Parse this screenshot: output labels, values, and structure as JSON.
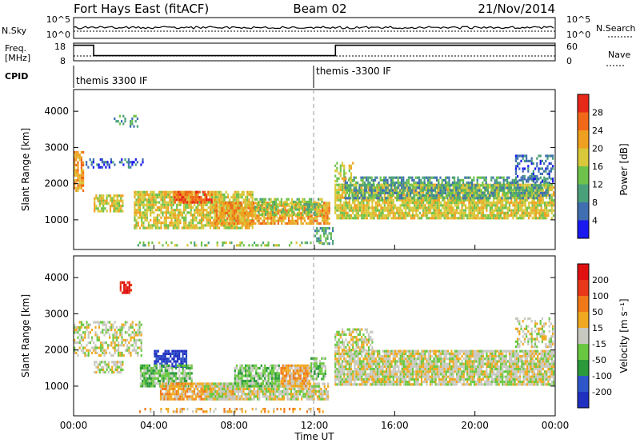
{
  "header": {
    "station": "Fort Hays East (fitACF)",
    "beam": "Beam 02",
    "date": "21/Nov/2014"
  },
  "noise_panel": {
    "left_label": "N.Sky",
    "left_ticks": [
      "10^5",
      "10^0"
    ],
    "right_ticks": [
      "10^5",
      "10^0"
    ],
    "right_label": "N.Search"
  },
  "freq_panel": {
    "left_label_1": "Freq.",
    "left_label_2": "[MHz]",
    "left_ticks": [
      "18",
      "8"
    ],
    "right_ticks": [
      "60",
      "0"
    ],
    "right_label": "Nave",
    "freq_steps": [
      {
        "t": 0.0,
        "v": 17.6
      },
      {
        "t": 1.0,
        "v": 17.6
      },
      {
        "t": 1.0,
        "v": 10.5
      },
      {
        "t": 13.05,
        "v": 10.5
      },
      {
        "t": 13.05,
        "v": 17.6
      },
      {
        "t": 24.0,
        "v": 17.6
      }
    ]
  },
  "cpid": {
    "label": "CPID",
    "segments": [
      {
        "start_h": 0.0,
        "label": "themis 3300 IF"
      },
      {
        "start_h": 12.0,
        "label": "themis -3300 IF"
      }
    ]
  },
  "x_axis": {
    "label": "Time UT",
    "ticks": [
      "00:00",
      "04:00",
      "08:00",
      "12:00",
      "16:00",
      "20:00",
      "00:00"
    ],
    "tick_hours": [
      0,
      4,
      8,
      12,
      16,
      20,
      24
    ],
    "range_h": [
      0,
      24
    ]
  },
  "power_panel": {
    "ylabel": "Slant Range [km]",
    "yticks": [
      "1000",
      "2000",
      "3000",
      "4000"
    ],
    "cbar_label": "Power [dB]",
    "cbar_ticks": [
      "4",
      "8",
      "12",
      "16",
      "20",
      "24",
      "28"
    ],
    "colors": [
      "#1919f0",
      "#3f6fb0",
      "#4aa07a",
      "#6ec24a",
      "#d8c83a",
      "#f0a020",
      "#f06818",
      "#e82818"
    ]
  },
  "velocity_panel": {
    "ylabel": "Slant Range [km]",
    "yticks": [
      "1000",
      "2000",
      "3000",
      "4000"
    ],
    "cbar_label": "Velocity [m s⁻¹]",
    "cbar_ticks": [
      "200",
      "100",
      "50",
      "15",
      "-15",
      "-50",
      "-100",
      "-200"
    ],
    "colors": [
      "#2030c0",
      "#2d56c8",
      "#2a9a3a",
      "#6ac840",
      "#c8c8c0",
      "#f0a820",
      "#f07818",
      "#e83818",
      "#e01010"
    ]
  },
  "chart_data": {
    "type": "heatmap",
    "title": "Fort Hays East (fitACF) Beam 02 21/Nov/2014",
    "xlabel": "Time UT",
    "ylabel": "Slant Range [km]",
    "xlim": [
      0,
      24
    ],
    "ylim": [
      180,
      4600
    ],
    "power_colorbar": {
      "label": "Power [dB]",
      "ticks": [
        4,
        8,
        12,
        16,
        20,
        24,
        28
      ]
    },
    "velocity_colorbar": {
      "label": "Velocity [m s⁻¹]",
      "ticks": [
        200,
        100,
        50,
        15,
        -15,
        -50,
        -100,
        -200
      ]
    },
    "power_regions": [
      {
        "t0": 0.0,
        "t1": 0.6,
        "r0": 1700,
        "r1": 2900,
        "level": 5,
        "density": 0.85
      },
      {
        "t0": 0.6,
        "t1": 3.5,
        "r0": 2400,
        "r1": 2700,
        "level": 1,
        "density": 0.45
      },
      {
        "t0": 1.0,
        "t1": 2.5,
        "r0": 1200,
        "r1": 1700,
        "level": 4,
        "density": 0.8
      },
      {
        "t0": 2.0,
        "t1": 3.3,
        "r0": 3500,
        "r1": 3900,
        "level": 2,
        "density": 0.4
      },
      {
        "t0": 3.0,
        "t1": 9.0,
        "r0": 700,
        "r1": 1800,
        "level": 4,
        "density": 0.8
      },
      {
        "t0": 5.0,
        "t1": 7.0,
        "r0": 1400,
        "r1": 1800,
        "level": 6,
        "density": 0.75
      },
      {
        "t0": 7.0,
        "t1": 12.8,
        "r0": 800,
        "r1": 1500,
        "level": 5,
        "density": 0.8
      },
      {
        "t0": 9.0,
        "t1": 12.5,
        "r0": 1100,
        "r1": 1600,
        "level": 3,
        "density": 0.6
      },
      {
        "t0": 12.0,
        "t1": 13.0,
        "r0": 300,
        "r1": 800,
        "level": 2,
        "density": 0.6
      },
      {
        "t0": 13.0,
        "t1": 24.0,
        "r0": 1000,
        "r1": 2000,
        "level": 4,
        "density": 0.85
      },
      {
        "t0": 13.5,
        "t1": 23.8,
        "r0": 1500,
        "r1": 2200,
        "level": 2,
        "density": 0.6
      },
      {
        "t0": 13.0,
        "t1": 14.0,
        "r0": 2000,
        "r1": 2600,
        "level": 4,
        "density": 0.5
      },
      {
        "t0": 22.0,
        "t1": 24.0,
        "r0": 2000,
        "r1": 2800,
        "level": 1,
        "density": 0.45
      },
      {
        "t0": 3.0,
        "t1": 12.5,
        "r0": 200,
        "r1": 400,
        "level": 3,
        "density": 0.3
      }
    ],
    "velocity_regions": [
      {
        "t0": 0.0,
        "t1": 3.5,
        "r0": 1800,
        "r1": 2800,
        "level": 4,
        "density": 0.5
      },
      {
        "t0": 1.0,
        "t1": 2.5,
        "r0": 1300,
        "r1": 1700,
        "level": 4,
        "density": 0.6
      },
      {
        "t0": 2.3,
        "t1": 3.0,
        "r0": 3500,
        "r1": 3900,
        "level": 8,
        "density": 0.7
      },
      {
        "t0": 4.0,
        "t1": 5.7,
        "r0": 1500,
        "r1": 2000,
        "level": 0,
        "density": 0.8
      },
      {
        "t0": 3.3,
        "t1": 6.0,
        "r0": 900,
        "r1": 1600,
        "level": 3,
        "density": 0.85
      },
      {
        "t0": 4.3,
        "t1": 8.0,
        "r0": 600,
        "r1": 1100,
        "level": 5,
        "density": 0.85
      },
      {
        "t0": 6.5,
        "t1": 12.8,
        "r0": 600,
        "r1": 1100,
        "level": 4,
        "density": 0.85
      },
      {
        "t0": 8.0,
        "t1": 10.3,
        "r0": 900,
        "r1": 1600,
        "level": 3,
        "density": 0.85
      },
      {
        "t0": 10.3,
        "t1": 11.8,
        "r0": 900,
        "r1": 1600,
        "level": 5,
        "density": 0.9
      },
      {
        "t0": 11.8,
        "t1": 12.6,
        "r0": 1100,
        "r1": 1800,
        "level": 3,
        "density": 0.75
      },
      {
        "t0": 13.0,
        "t1": 24.0,
        "r0": 1000,
        "r1": 2000,
        "level": 4,
        "density": 0.9
      },
      {
        "t0": 13.0,
        "t1": 15.0,
        "r0": 1900,
        "r1": 2600,
        "level": 4,
        "density": 0.55
      },
      {
        "t0": 22.0,
        "t1": 24.0,
        "r0": 2000,
        "r1": 2900,
        "level": 4,
        "density": 0.45
      },
      {
        "t0": 3.0,
        "t1": 12.5,
        "r0": 200,
        "r1": 400,
        "level": 5,
        "density": 0.35
      }
    ]
  }
}
